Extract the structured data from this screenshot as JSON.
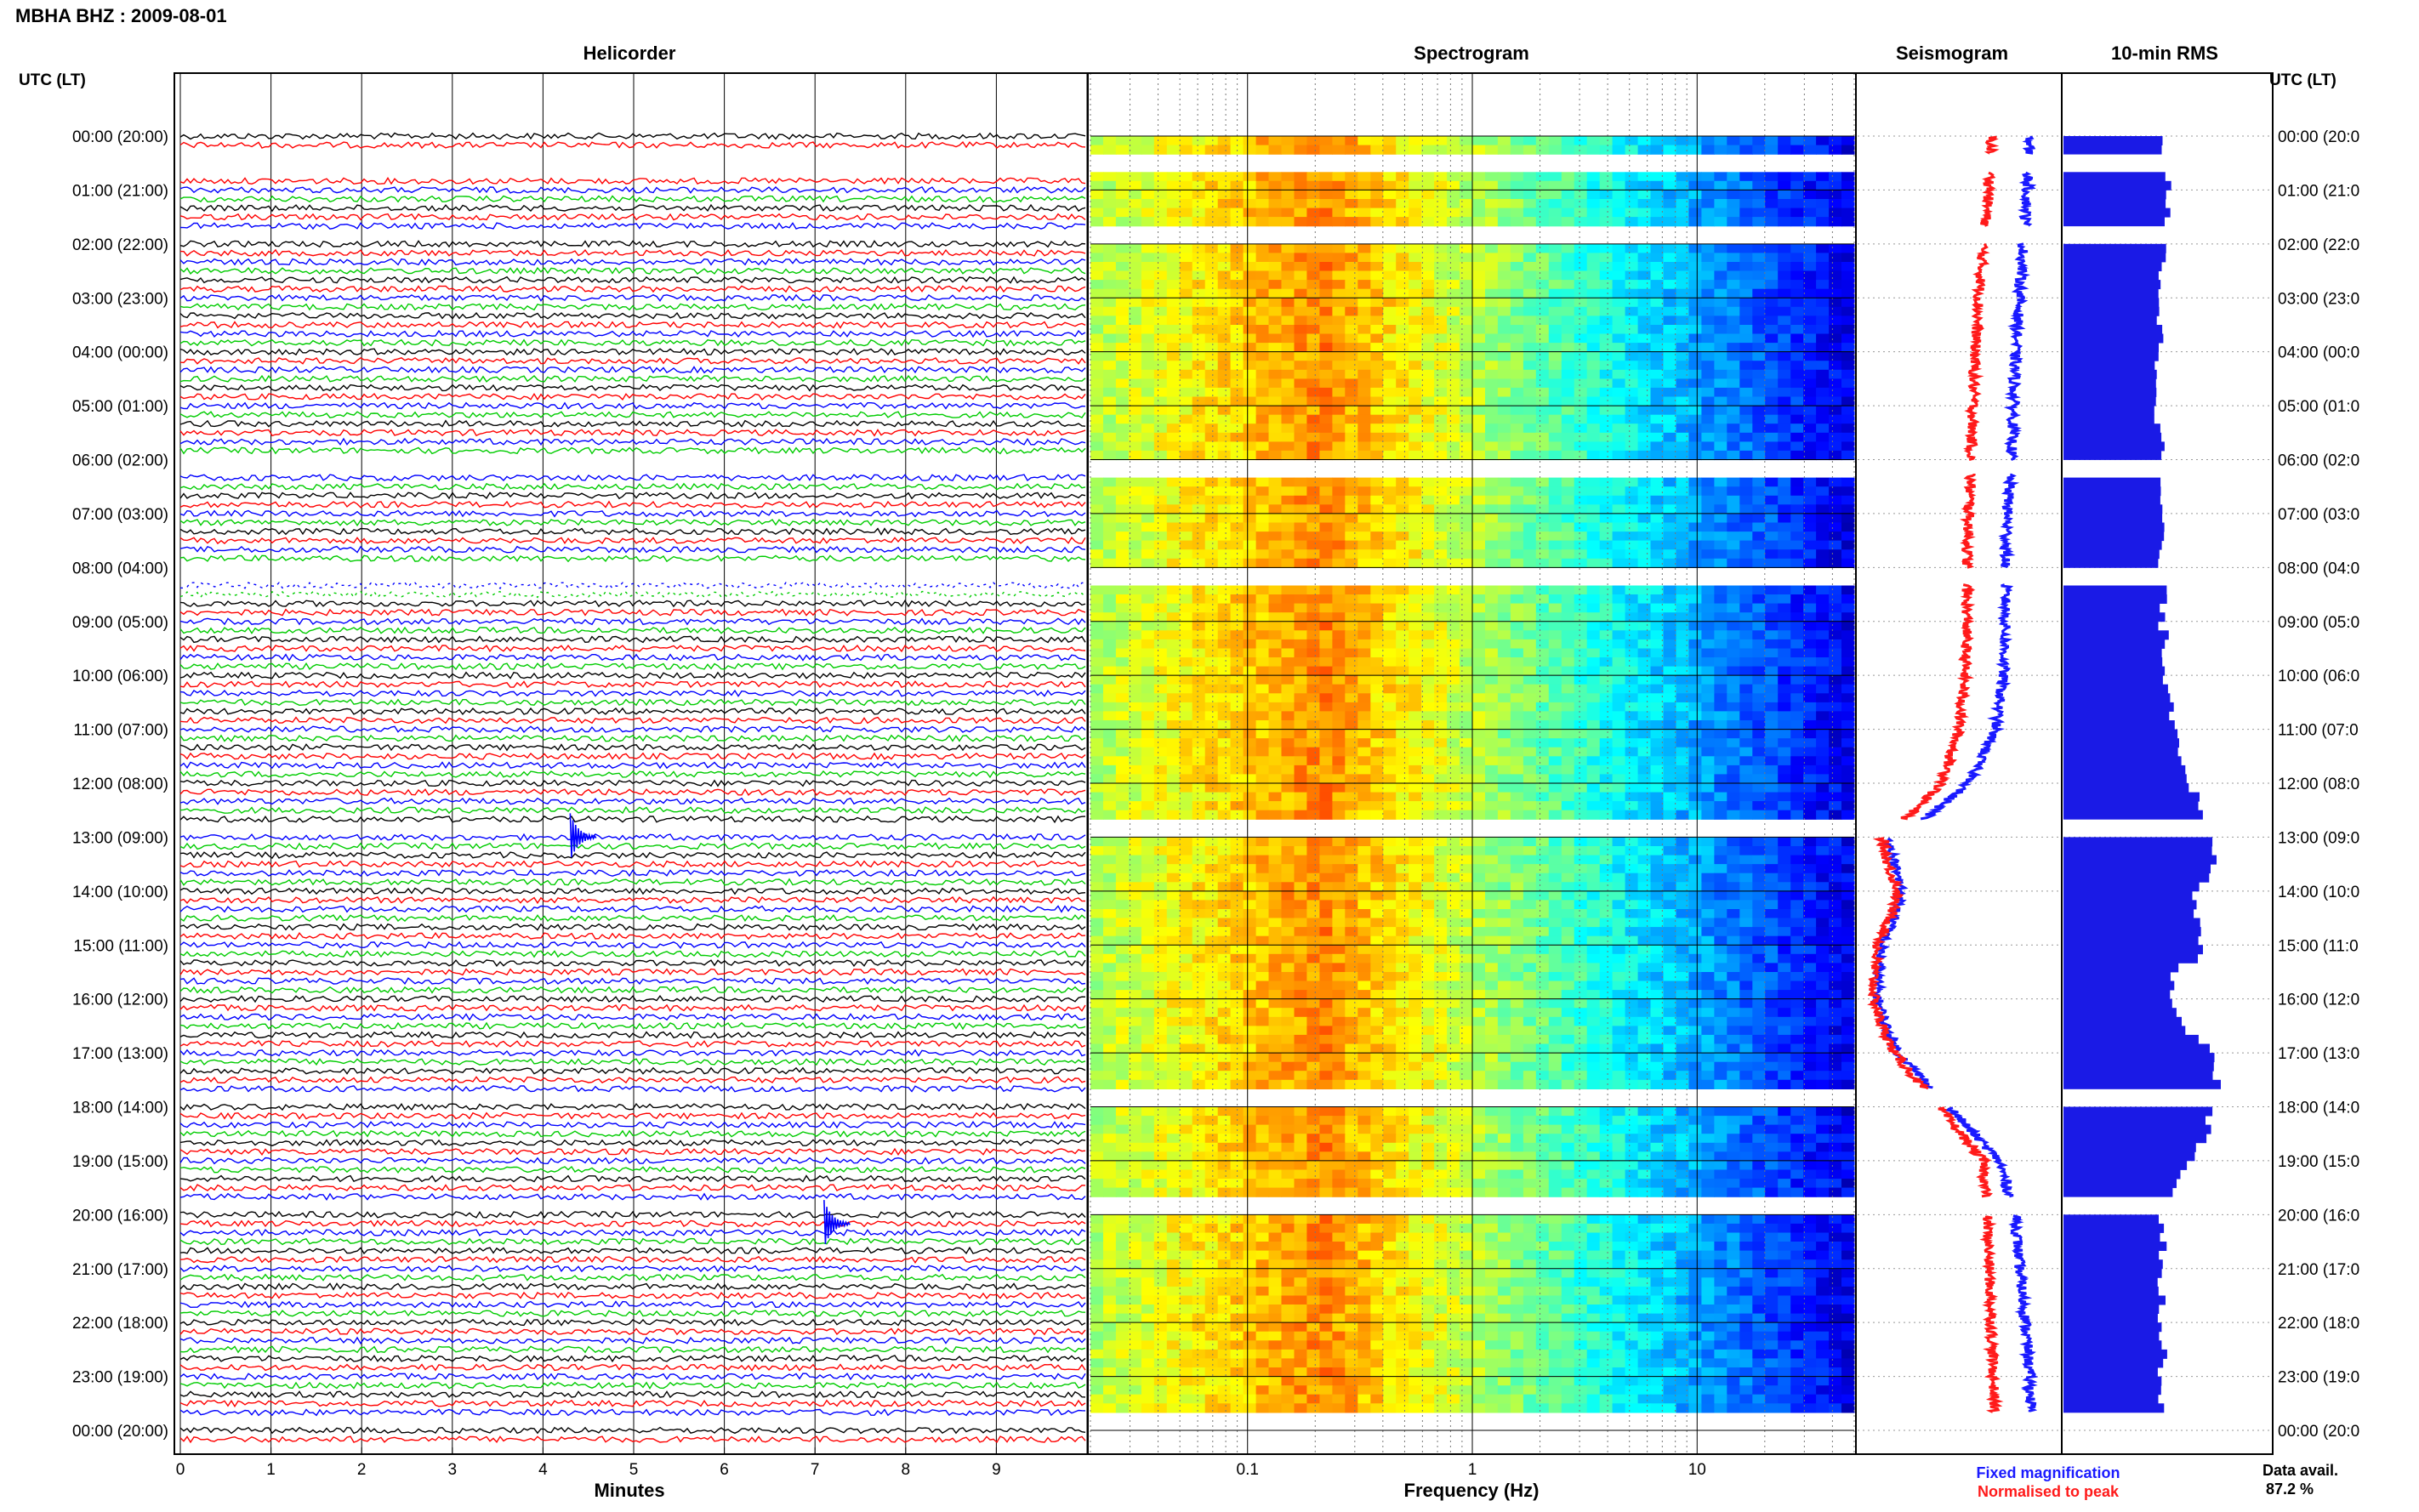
{
  "header": {
    "station_label": "MBHA BHZ : 2009-08-01",
    "left_axis_title": "UTC (LT)",
    "right_axis_title": "UTC (LT)"
  },
  "panels": {
    "helicorder_title": "Helicorder",
    "spectrogram_title": "Spectrogram",
    "seismogram_title": "Seismogram",
    "rms_title": "10-min RMS"
  },
  "footer": {
    "minutes_label": "Minutes",
    "frequency_label": "Frequency (Hz)",
    "legend_fixed": "Fixed magnification",
    "legend_normalised": "Normalised to peak",
    "data_avail_label": "Data avail.",
    "data_avail_value": "87.2 %"
  },
  "colors": {
    "fixed": "#1a1aff",
    "normalised": "#ff1a1a",
    "rms_bar": "#1a1ae6",
    "trace_cycle": [
      "#000000",
      "#ff0000",
      "#0000ff",
      "#00cc00"
    ]
  },
  "chart_data": [
    {
      "type": "line",
      "name": "helicorder",
      "title": "Helicorder",
      "xlabel": "Minutes",
      "x_ticks": [
        "0",
        "1",
        "2",
        "3",
        "4",
        "5",
        "6",
        "7",
        "8",
        "9"
      ],
      "xlim": [
        0,
        10
      ],
      "y_ticks": [
        "00:00 (20:00)",
        "01:00 (21:00)",
        "02:00 (22:00)",
        "03:00 (23:00)",
        "04:00 (00:00)",
        "05:00 (01:00)",
        "06:00 (02:00)",
        "07:00 (03:00)",
        "08:00 (04:00)",
        "09:00 (05:00)",
        "10:00 (06:00)",
        "11:00 (07:00)",
        "12:00 (08:00)",
        "13:00 (09:00)",
        "14:00 (10:00)",
        "15:00 (11:00)",
        "16:00 (12:00)",
        "17:00 (13:00)",
        "18:00 (14:00)",
        "19:00 (15:00)",
        "20:00 (16:00)",
        "21:00 (17:00)",
        "22:00 (18:00)",
        "23:00 (19:00)",
        "00:00 (20:00)"
      ],
      "right_y_ticks": [
        "00:00 (20:0",
        "01:00 (21:0",
        "02:00 (22:0",
        "03:00 (23:0",
        "04:00 (00:0",
        "05:00 (01:0",
        "06:00 (02:0",
        "07:00 (03:0",
        "08:00 (04:0",
        "09:00 (05:0",
        "10:00 (06:0",
        "11:00 (07:0",
        "12:00 (08:0",
        "13:00 (09:0",
        "14:00 (10:0",
        "15:00 (11:0",
        "16:00 (12:0",
        "17:00 (13:0",
        "18:00 (14:0",
        "19:00 (15:0",
        "20:00 (16:0",
        "21:00 (17:0",
        "22:00 (18:0",
        "23:00 (19:0",
        "00:00 (20:0"
      ],
      "rows_per_hour": 6,
      "gaps_hours": [
        [
          0.33,
          0.67
        ],
        [
          1.67,
          2.0
        ],
        [
          6.0,
          6.25
        ],
        [
          8.0,
          8.3
        ],
        [
          12.67,
          13.0
        ],
        [
          17.67,
          18.0
        ],
        [
          19.67,
          20.0
        ],
        [
          23.67,
          24.0
        ]
      ],
      "events": [
        {
          "time_hour": 13.0,
          "minute": 4.3
        },
        {
          "time_hour": 20.17,
          "minute": 7.1
        }
      ]
    },
    {
      "type": "heatmap",
      "name": "spectrogram",
      "title": "Spectrogram",
      "xlabel": "Frequency (Hz)",
      "x_scale": "log",
      "xlim": [
        0.02,
        50
      ],
      "x_ticks": [
        "0.1",
        "1",
        "10"
      ],
      "x_tick_values": [
        0.1,
        1,
        10
      ],
      "ylim_hours": [
        0,
        24
      ],
      "colormap": "jet",
      "spectral_peak_hz": 0.25
    },
    {
      "type": "line",
      "name": "seismogram",
      "title": "Seismogram",
      "series": [
        {
          "name": "Fixed magnification",
          "color": "#1a1aff",
          "hours": [
            0,
            1,
            2,
            3,
            4,
            5,
            6,
            7,
            8,
            9,
            10,
            11,
            12,
            12.6,
            13,
            13.5,
            14,
            14.5,
            15,
            15.5,
            16,
            16.5,
            17,
            18,
            19,
            20,
            21,
            22,
            23,
            24
          ],
          "level": [
            0.85,
            0.84,
            0.82,
            0.8,
            0.78,
            0.77,
            0.76,
            0.74,
            0.73,
            0.73,
            0.72,
            0.68,
            0.55,
            0.35,
            0.15,
            0.18,
            0.22,
            0.18,
            0.12,
            0.1,
            0.1,
            0.14,
            0.2,
            0.45,
            0.7,
            0.78,
            0.8,
            0.83,
            0.85,
            0.86
          ]
        },
        {
          "name": "Normalised to peak",
          "color": "#ff1a1a",
          "hours": [
            0,
            1,
            2,
            3,
            4,
            5,
            6,
            7,
            8,
            9,
            10,
            11,
            12,
            12.6,
            13,
            13.5,
            14,
            14.5,
            15,
            15.5,
            16,
            16.5,
            17,
            18,
            19,
            20,
            21,
            22,
            23,
            24
          ],
          "level": [
            0.66,
            0.65,
            0.62,
            0.6,
            0.58,
            0.57,
            0.56,
            0.55,
            0.54,
            0.54,
            0.53,
            0.5,
            0.42,
            0.25,
            0.12,
            0.15,
            0.2,
            0.16,
            0.1,
            0.08,
            0.08,
            0.12,
            0.18,
            0.4,
            0.62,
            0.64,
            0.65,
            0.66,
            0.67,
            0.68
          ]
        }
      ]
    },
    {
      "type": "bar",
      "name": "rms",
      "title": "10-min RMS",
      "orientation": "horizontal",
      "hours": [
        0,
        1,
        2,
        3,
        4,
        5,
        6,
        7,
        8,
        9,
        10,
        11,
        12,
        13,
        13.5,
        14,
        14.5,
        15,
        15.5,
        16,
        16.5,
        17,
        18,
        18.5,
        19,
        20,
        21,
        22,
        23
      ],
      "values": [
        0.48,
        0.5,
        0.48,
        0.47,
        0.46,
        0.46,
        0.47,
        0.47,
        0.47,
        0.48,
        0.5,
        0.55,
        0.62,
        0.7,
        0.72,
        0.62,
        0.64,
        0.68,
        0.52,
        0.54,
        0.6,
        0.75,
        0.72,
        0.68,
        0.6,
        0.48,
        0.48,
        0.47,
        0.48
      ],
      "gaps_hours": [
        [
          0.33,
          0.67
        ],
        [
          1.67,
          2.0
        ],
        [
          6.0,
          6.25
        ],
        [
          8.0,
          8.3
        ],
        [
          12.67,
          13.0
        ],
        [
          17.67,
          18.0
        ],
        [
          19.67,
          20.0
        ],
        [
          23.67,
          24.0
        ]
      ]
    }
  ]
}
